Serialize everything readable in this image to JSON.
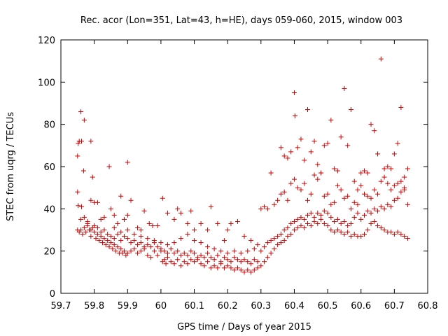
{
  "chart_data": {
    "type": "scatter",
    "title": "Rec. acor (Lon=351, Lat=43, h=HE), days 059-060, 2015, window 003",
    "xlabel": "GPS time / Days of year 2015",
    "ylabel": "STEC from uqrg / TECUs",
    "xlim": [
      59.7,
      60.8
    ],
    "ylim": [
      0,
      120
    ],
    "xticks": [
      "59.7",
      "59.8",
      "59.9",
      "60",
      "60.1",
      "60.2",
      "60.3",
      "60.4",
      "60.5",
      "60.6",
      "60.7",
      "60.8"
    ],
    "yticks": [
      "0",
      "20",
      "40",
      "60",
      "80",
      "100",
      "120"
    ],
    "grid": false,
    "legend": "none",
    "marker": "plus",
    "marker_color": "#cc0000",
    "points": [
      [
        59.75,
        65
      ],
      [
        59.752,
        71
      ],
      [
        59.755,
        72
      ],
      [
        59.76,
        86
      ],
      [
        59.762,
        72
      ],
      [
        59.77,
        82
      ],
      [
        59.768,
        58
      ],
      [
        59.79,
        72
      ],
      [
        59.795,
        55
      ],
      [
        59.75,
        48
      ],
      [
        59.752,
        41.5
      ],
      [
        59.762,
        41
      ],
      [
        59.78,
        34
      ],
      [
        59.79,
        44
      ],
      [
        59.8,
        43
      ],
      [
        59.81,
        43
      ],
      [
        59.82,
        35
      ],
      [
        59.83,
        36
      ],
      [
        59.845,
        60
      ],
      [
        59.85,
        40
      ],
      [
        59.86,
        37
      ],
      [
        59.87,
        33
      ],
      [
        59.88,
        46
      ],
      [
        59.89,
        35
      ],
      [
        59.9,
        62
      ],
      [
        59.9,
        37
      ],
      [
        59.91,
        44
      ],
      [
        59.93,
        31
      ],
      [
        59.94,
        30
      ],
      [
        59.95,
        39
      ],
      [
        59.965,
        33
      ],
      [
        59.975,
        32
      ],
      [
        59.99,
        32
      ],
      [
        60.005,
        45
      ],
      [
        60.02,
        38
      ],
      [
        60.04,
        35
      ],
      [
        60.05,
        40
      ],
      [
        60.06,
        38
      ],
      [
        60.08,
        33
      ],
      [
        60.09,
        39
      ],
      [
        60.1,
        30
      ],
      [
        60.12,
        33
      ],
      [
        60.14,
        30
      ],
      [
        60.15,
        41
      ],
      [
        60.17,
        33
      ],
      [
        60.19,
        25
      ],
      [
        60.2,
        30
      ],
      [
        60.21,
        33
      ],
      [
        60.23,
        34
      ],
      [
        60.25,
        27
      ],
      [
        60.27,
        25
      ],
      [
        59.75,
        30
      ],
      [
        59.755,
        29
      ],
      [
        59.76,
        30
      ],
      [
        59.765,
        28
      ],
      [
        59.77,
        31
      ],
      [
        59.775,
        29
      ],
      [
        59.78,
        32
      ],
      [
        59.785,
        30
      ],
      [
        59.79,
        27
      ],
      [
        59.795,
        31
      ],
      [
        59.8,
        29
      ],
      [
        59.805,
        26
      ],
      [
        59.81,
        28
      ],
      [
        59.815,
        25
      ],
      [
        59.82,
        27
      ],
      [
        59.825,
        24
      ],
      [
        59.83,
        26
      ],
      [
        59.835,
        23
      ],
      [
        59.84,
        25
      ],
      [
        59.845,
        22
      ],
      [
        59.85,
        24
      ],
      [
        59.855,
        21
      ],
      [
        59.86,
        23
      ],
      [
        59.865,
        20
      ],
      [
        59.87,
        22
      ],
      [
        59.875,
        19
      ],
      [
        59.88,
        21
      ],
      [
        59.885,
        19
      ],
      [
        59.89,
        20
      ],
      [
        59.895,
        18
      ],
      [
        59.9,
        19
      ],
      [
        59.91,
        20
      ],
      [
        59.92,
        21
      ],
      [
        59.93,
        19
      ],
      [
        59.94,
        20
      ],
      [
        59.95,
        21
      ],
      [
        59.96,
        18
      ],
      [
        59.97,
        17
      ],
      [
        59.98,
        20
      ],
      [
        59.99,
        18
      ],
      [
        60.0,
        20
      ],
      [
        60.005,
        15
      ],
      [
        60.01,
        16
      ],
      [
        60.015,
        14
      ],
      [
        60.02,
        17
      ],
      [
        60.03,
        15
      ],
      [
        60.04,
        14
      ],
      [
        60.05,
        16
      ],
      [
        60.06,
        13
      ],
      [
        60.07,
        15
      ],
      [
        60.08,
        14
      ],
      [
        60.09,
        16
      ],
      [
        60.1,
        15
      ],
      [
        60.11,
        16
      ],
      [
        60.12,
        14
      ],
      [
        60.13,
        13
      ],
      [
        60.14,
        15
      ],
      [
        60.15,
        12
      ],
      [
        60.16,
        13
      ],
      [
        60.17,
        12
      ],
      [
        60.18,
        14
      ],
      [
        60.19,
        12
      ],
      [
        60.2,
        13
      ],
      [
        60.21,
        12
      ],
      [
        60.22,
        11
      ],
      [
        60.23,
        12
      ],
      [
        60.24,
        11
      ],
      [
        60.25,
        10
      ],
      [
        60.26,
        11
      ],
      [
        60.27,
        10
      ],
      [
        60.28,
        11
      ],
      [
        60.29,
        12
      ],
      [
        60.3,
        13
      ],
      [
        60.31,
        15
      ],
      [
        60.32,
        17
      ],
      [
        60.33,
        19
      ],
      [
        60.34,
        21
      ],
      [
        60.35,
        23
      ],
      [
        60.36,
        24
      ],
      [
        60.37,
        25
      ],
      [
        60.38,
        27
      ],
      [
        60.39,
        28
      ],
      [
        60.4,
        30
      ],
      [
        60.41,
        31
      ],
      [
        60.42,
        32
      ],
      [
        60.43,
        31
      ],
      [
        60.44,
        33
      ],
      [
        60.45,
        32
      ],
      [
        60.46,
        34
      ],
      [
        60.47,
        33
      ],
      [
        60.48,
        35
      ],
      [
        60.49,
        33
      ],
      [
        60.5,
        32
      ],
      [
        60.51,
        30
      ],
      [
        60.52,
        29
      ],
      [
        60.53,
        30
      ],
      [
        60.54,
        29
      ],
      [
        60.55,
        28
      ],
      [
        60.56,
        29
      ],
      [
        60.57,
        27
      ],
      [
        60.58,
        28
      ],
      [
        60.59,
        27
      ],
      [
        60.6,
        27
      ],
      [
        60.61,
        28
      ],
      [
        60.62,
        30
      ],
      [
        60.63,
        33
      ],
      [
        60.64,
        34
      ],
      [
        60.65,
        32
      ],
      [
        60.66,
        31
      ],
      [
        60.67,
        30
      ],
      [
        60.68,
        29
      ],
      [
        60.69,
        29
      ],
      [
        60.7,
        28
      ],
      [
        60.71,
        29
      ],
      [
        60.72,
        28
      ],
      [
        60.73,
        27
      ],
      [
        60.74,
        26
      ],
      [
        59.76,
        35
      ],
      [
        59.77,
        36
      ],
      [
        59.78,
        33
      ],
      [
        59.79,
        30
      ],
      [
        59.8,
        32
      ],
      [
        59.81,
        31
      ],
      [
        59.82,
        29
      ],
      [
        59.83,
        30
      ],
      [
        59.84,
        28
      ],
      [
        59.85,
        27
      ],
      [
        59.86,
        26
      ],
      [
        59.87,
        28
      ],
      [
        59.88,
        25
      ],
      [
        59.89,
        27
      ],
      [
        59.9,
        26
      ],
      [
        59.91,
        24
      ],
      [
        59.92,
        25
      ],
      [
        59.93,
        23
      ],
      [
        59.94,
        24
      ],
      [
        59.95,
        22
      ],
      [
        59.96,
        23
      ],
      [
        59.97,
        22
      ],
      [
        59.98,
        24
      ],
      [
        59.99,
        22
      ],
      [
        60.0,
        21
      ],
      [
        60.01,
        20
      ],
      [
        60.02,
        19
      ],
      [
        60.03,
        21
      ],
      [
        60.04,
        19
      ],
      [
        60.05,
        20
      ],
      [
        60.06,
        18
      ],
      [
        60.07,
        19
      ],
      [
        60.08,
        18
      ],
      [
        60.09,
        20
      ],
      [
        60.1,
        19
      ],
      [
        60.11,
        17
      ],
      [
        60.12,
        18
      ],
      [
        60.13,
        17
      ],
      [
        60.14,
        19
      ],
      [
        60.15,
        17
      ],
      [
        60.16,
        16
      ],
      [
        60.17,
        18
      ],
      [
        60.18,
        15
      ],
      [
        60.19,
        17
      ],
      [
        60.2,
        16
      ],
      [
        60.21,
        15
      ],
      [
        60.22,
        17
      ],
      [
        60.23,
        16
      ],
      [
        60.24,
        15
      ],
      [
        60.25,
        16
      ],
      [
        60.26,
        15
      ],
      [
        60.27,
        14
      ],
      [
        60.28,
        16
      ],
      [
        60.29,
        15
      ],
      [
        60.3,
        20
      ],
      [
        60.31,
        22
      ],
      [
        60.32,
        24
      ],
      [
        60.33,
        25
      ],
      [
        60.34,
        26
      ],
      [
        60.35,
        27
      ],
      [
        60.36,
        28
      ],
      [
        60.37,
        30
      ],
      [
        60.38,
        31
      ],
      [
        60.39,
        33
      ],
      [
        60.4,
        34
      ],
      [
        60.41,
        35
      ],
      [
        60.42,
        36
      ],
      [
        60.43,
        35
      ],
      [
        60.44,
        37
      ],
      [
        60.45,
        38
      ],
      [
        60.46,
        36
      ],
      [
        60.47,
        38
      ],
      [
        60.48,
        37
      ],
      [
        60.49,
        39
      ],
      [
        60.5,
        38
      ],
      [
        60.51,
        36
      ],
      [
        60.52,
        34
      ],
      [
        60.53,
        35
      ],
      [
        60.54,
        33
      ],
      [
        60.55,
        34
      ],
      [
        60.56,
        32
      ],
      [
        60.57,
        33
      ],
      [
        60.58,
        36
      ],
      [
        60.59,
        38
      ],
      [
        60.6,
        35
      ],
      [
        60.61,
        37
      ],
      [
        60.62,
        39
      ],
      [
        60.63,
        38
      ],
      [
        60.64,
        40
      ],
      [
        60.65,
        39
      ],
      [
        60.66,
        41
      ],
      [
        60.67,
        40
      ],
      [
        60.68,
        42
      ],
      [
        60.69,
        41
      ],
      [
        60.7,
        44
      ],
      [
        60.71,
        45
      ],
      [
        60.72,
        48
      ],
      [
        60.73,
        50
      ],
      [
        60.3,
        40
      ],
      [
        60.31,
        41
      ],
      [
        60.32,
        40
      ],
      [
        60.33,
        57
      ],
      [
        60.34,
        42
      ],
      [
        60.35,
        44
      ],
      [
        60.36,
        69
      ],
      [
        60.37,
        65
      ],
      [
        60.38,
        64
      ],
      [
        60.39,
        67
      ],
      [
        60.4,
        95
      ],
      [
        60.402,
        84
      ],
      [
        60.41,
        69
      ],
      [
        60.42,
        73
      ],
      [
        60.43,
        63
      ],
      [
        60.44,
        87
      ],
      [
        60.45,
        67
      ],
      [
        60.46,
        72
      ],
      [
        60.47,
        61
      ],
      [
        60.48,
        57
      ],
      [
        60.49,
        70
      ],
      [
        60.5,
        71
      ],
      [
        60.51,
        82
      ],
      [
        60.52,
        59
      ],
      [
        60.53,
        58
      ],
      [
        60.54,
        74
      ],
      [
        60.55,
        97
      ],
      [
        60.56,
        70
      ],
      [
        60.57,
        87
      ],
      [
        60.58,
        53
      ],
      [
        60.59,
        49
      ],
      [
        60.6,
        57
      ],
      [
        60.61,
        58
      ],
      [
        60.62,
        57
      ],
      [
        60.63,
        80
      ],
      [
        60.64,
        77
      ],
      [
        60.65,
        66
      ],
      [
        60.66,
        111
      ],
      [
        60.67,
        59
      ],
      [
        60.68,
        60
      ],
      [
        60.69,
        59
      ],
      [
        60.7,
        66
      ],
      [
        60.71,
        71
      ],
      [
        60.72,
        88
      ],
      [
        60.73,
        55
      ],
      [
        60.74,
        59
      ],
      [
        60.36,
        47
      ],
      [
        60.37,
        48
      ],
      [
        60.38,
        44
      ],
      [
        60.39,
        52
      ],
      [
        60.4,
        54
      ],
      [
        60.41,
        50
      ],
      [
        60.42,
        49
      ],
      [
        60.43,
        52
      ],
      [
        60.44,
        44
      ],
      [
        60.45,
        47
      ],
      [
        60.46,
        56
      ],
      [
        60.47,
        54
      ],
      [
        60.48,
        57
      ],
      [
        60.49,
        46
      ],
      [
        60.5,
        47
      ],
      [
        60.51,
        42
      ],
      [
        60.52,
        43
      ],
      [
        60.53,
        51
      ],
      [
        60.54,
        49
      ],
      [
        60.55,
        45
      ],
      [
        60.56,
        46
      ],
      [
        60.57,
        40
      ],
      [
        60.58,
        43
      ],
      [
        60.59,
        42
      ],
      [
        60.6,
        51
      ],
      [
        60.61,
        47
      ],
      [
        60.62,
        46
      ],
      [
        60.63,
        45
      ],
      [
        60.64,
        49
      ],
      [
        60.65,
        47
      ],
      [
        60.66,
        53
      ],
      [
        60.67,
        55
      ],
      [
        60.68,
        52
      ],
      [
        60.69,
        49
      ],
      [
        60.7,
        51
      ],
      [
        60.71,
        52
      ],
      [
        60.72,
        53
      ],
      [
        60.73,
        49
      ],
      [
        60.74,
        42
      ],
      [
        59.86,
        31
      ],
      [
        59.88,
        29
      ],
      [
        59.9,
        30
      ],
      [
        59.92,
        28
      ],
      [
        59.94,
        27
      ],
      [
        59.96,
        26
      ],
      [
        59.98,
        25
      ],
      [
        60.0,
        24
      ],
      [
        60.02,
        23
      ],
      [
        60.04,
        24
      ],
      [
        60.06,
        26
      ],
      [
        60.08,
        28
      ],
      [
        60.1,
        25
      ],
      [
        60.12,
        24
      ],
      [
        60.14,
        22
      ],
      [
        60.16,
        21
      ],
      [
        60.18,
        20
      ],
      [
        60.2,
        19
      ],
      [
        60.22,
        20
      ],
      [
        60.24,
        19
      ],
      [
        60.26,
        20
      ],
      [
        60.28,
        21
      ],
      [
        60.29,
        23
      ]
    ]
  }
}
